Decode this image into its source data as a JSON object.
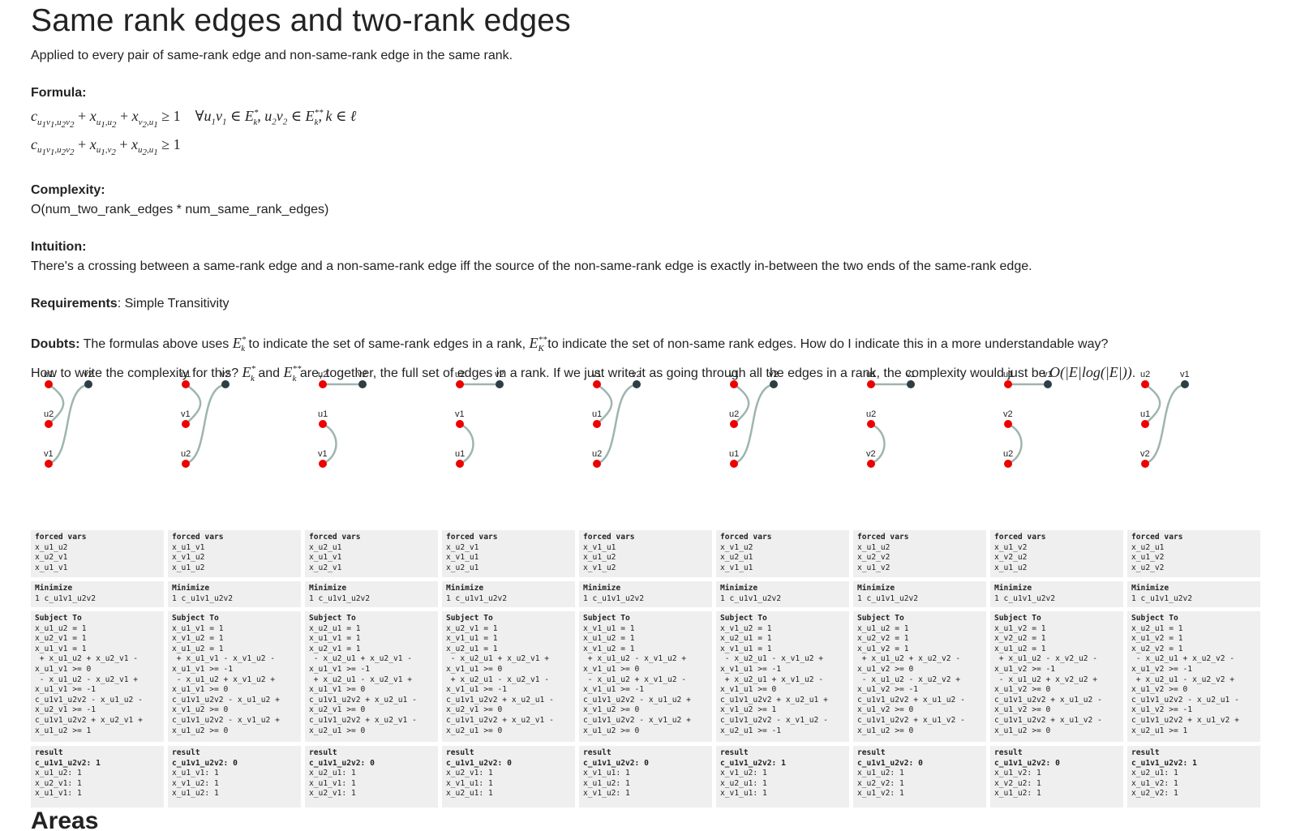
{
  "title": "Same rank edges and two-rank edges",
  "subtitle": "Applied to every pair of same-rank edge and non-same-rank edge in the same rank.",
  "formula_label": "Formula:",
  "complexity_label": "Complexity:",
  "complexity_value": "O(num_two_rank_edges * num_same_rank_edges)",
  "intuition_label": "Intuition:",
  "intuition_text": "There's a crossing between a same-rank edge and a non-same-rank edge iff the source of the non-same-rank edge is exactly in-between the two ends of the same-rank edge.",
  "requirements_label": "Requirements",
  "requirements_value": ": Simple Transitivity",
  "doubts_label": "Doubts:",
  "doubts_line1_a": " The formulas above uses ",
  "doubts_line1_b": " to indicate the set of same-rank edges in a rank, ",
  "doubts_line1_c": " to indicate the set of non-same rank edges. How do I indicate this in a more understandable way?",
  "doubts_line2_a": "How to write the complexity for this? ",
  "doubts_line2_b": " and ",
  "doubts_line2_c": " are, together, the full set of edges in a rank. If we just write it as going through all the edges in a rank, the complexity would just be ",
  "doubts_line2_d": ".",
  "next_heading": "Areas",
  "colors": {
    "red_node": "#ee0000",
    "dark_node": "#2d3e44",
    "edge": "#9fb5af",
    "box_bg": "#efefef"
  },
  "diagrams": [
    {
      "labels": [
        "u1",
        "v2",
        "u2",
        "v1"
      ],
      "type": "cross"
    },
    {
      "labels": [
        "u1",
        "v2",
        "v1",
        "u2"
      ],
      "type": "cross"
    },
    {
      "labels": [
        "u2",
        "v2",
        "u1",
        "v1"
      ],
      "type": "flat"
    },
    {
      "labels": [
        "u2",
        "v2",
        "v1",
        "u1"
      ],
      "type": "flat"
    },
    {
      "labels": [
        "v1",
        "v2",
        "u1",
        "u2"
      ],
      "type": "cross"
    },
    {
      "labels": [
        "v1",
        "v2",
        "u2",
        "u1"
      ],
      "type": "cross"
    },
    {
      "labels": [
        "u1",
        "v1",
        "u2",
        "v2"
      ],
      "type": "flat"
    },
    {
      "labels": [
        "u1",
        "v1",
        "v2",
        "u2"
      ],
      "type": "flat"
    },
    {
      "labels": [
        "u2",
        "v1",
        "u1",
        "v2"
      ],
      "type": "cross"
    }
  ],
  "columns": [
    {
      "forced_header": "forced vars",
      "forced": [
        "x_u1_u2",
        "x_u2_v1",
        "x_u1_v1"
      ],
      "minimize_header": "Minimize",
      "minimize": "1 c_u1v1_u2v2",
      "subject_header": "Subject To",
      "subject": [
        "x_u1_u2 = 1",
        "x_u2_v1 = 1",
        "x_u1_v1 = 1",
        " + x_u1_u2 + x_u2_v1 -",
        "x_u1_v1 >= 0",
        " - x_u1_u2 - x_u2_v1 +",
        "x_u1_v1 >= -1",
        "c_u1v1_u2v2 - x_u1_u2 -",
        "x_u2_v1 >= -1",
        "c_u1v1_u2v2 + x_u2_v1 +",
        "x_u1_u2 >= 1"
      ],
      "result_header": "result",
      "result_first": "c_u1v1_u2v2: 1",
      "result": [
        "x_u1_u2: 1",
        "x_u2_v1: 1",
        "x_u1_v1: 1"
      ]
    },
    {
      "forced_header": "forced vars",
      "forced": [
        "x_u1_v1",
        "x_v1_u2",
        "x_u1_u2"
      ],
      "minimize_header": "Minimize",
      "minimize": "1 c_u1v1_u2v2",
      "subject_header": "Subject To",
      "subject": [
        "x_u1_v1 = 1",
        "x_v1_u2 = 1",
        "x_u1_u2 = 1",
        " + x_u1_v1 - x_v1_u2 -",
        "x_u1_v1 >= -1",
        " - x_u1_u2 + x_v1_u2 +",
        "x_u1_v1 >= 0",
        "c_u1v1_u2v2 - x_u1_u2 +",
        "x_v1_u2 >= 0",
        "c_u1v1_u2v2 - x_v1_u2 +",
        "x_u1_u2 >= 0"
      ],
      "result_header": "result",
      "result_first": "c_u1v1_u2v2: 0",
      "result": [
        "x_u1_v1: 1",
        "x_v1_u2: 1",
        "x_u1_u2: 1"
      ]
    },
    {
      "forced_header": "forced vars",
      "forced": [
        "x_u2_u1",
        "x_u1_v1",
        "x_u2_v1"
      ],
      "minimize_header": "Minimize",
      "minimize": "1 c_u1v1_u2v2",
      "subject_header": "Subject To",
      "subject": [
        "x_u2_u1 = 1",
        "x_u1_v1 = 1",
        "x_u2_v1 = 1",
        " - x_u2_u1 + x_u2_v1 -",
        "x_u1_v1 >= -1",
        " + x_u2_u1 - x_u2_v1 +",
        "x_u1_v1 >= 0",
        "c_u1v1_u2v2 + x_u2_u1 -",
        "x_u2_v1 >= 0",
        "c_u1v1_u2v2 + x_u2_v1 -",
        "x_u2_u1 >= 0"
      ],
      "result_header": "result",
      "result_first": "c_u1v1_u2v2: 0",
      "result": [
        "x_u2_u1: 1",
        "x_u1_v1: 1",
        "x_u2_v1: 1"
      ]
    },
    {
      "forced_header": "forced vars",
      "forced": [
        "x_u2_v1",
        "x_v1_u1",
        "x_u2_u1"
      ],
      "minimize_header": "Minimize",
      "minimize": "1 c_u1v1_u2v2",
      "subject_header": "Subject To",
      "subject": [
        "x_u2_v1 = 1",
        "x_v1_u1 = 1",
        "x_u2_u1 = 1",
        " - x_u2_u1 + x_u2_v1 +",
        "x_v1_u1 >= 0",
        " + x_u2_u1 - x_u2_v1 -",
        "x_v1_u1 >= -1",
        "c_u1v1_u2v2 + x_u2_u1 -",
        "x_u2_v1 >= 0",
        "c_u1v1_u2v2 + x_u2_v1 -",
        "x_u2_u1 >= 0"
      ],
      "result_header": "result",
      "result_first": "c_u1v1_u2v2: 0",
      "result": [
        "x_u2_v1: 1",
        "x_v1_u1: 1",
        "x_u2_u1: 1"
      ]
    },
    {
      "forced_header": "forced vars",
      "forced": [
        "x_v1_u1",
        "x_u1_u2",
        "x_v1_u2"
      ],
      "minimize_header": "Minimize",
      "minimize": "1 c_u1v1_u2v2",
      "subject_header": "Subject To",
      "subject": [
        "x_v1_u1 = 1",
        "x_u1_u2 = 1",
        "x_v1_u2 = 1",
        " + x_u1_u2 - x_v1_u2 +",
        "x_v1_u1 >= 0",
        " - x_u1_u2 + x_v1_u2 -",
        "x_v1_u1 >= -1",
        "c_u1v1_u2v2 - x_u1_u2 +",
        "x_v1_u2 >= 0",
        "c_u1v1_u2v2 - x_v1_u2 +",
        "x_u1_u2 >= 0"
      ],
      "result_header": "result",
      "result_first": "c_u1v1_u2v2: 0",
      "result": [
        "x_v1_u1: 1",
        "x_u1_u2: 1",
        "x_v1_u2: 1"
      ]
    },
    {
      "forced_header": "forced vars",
      "forced": [
        "x_v1_u2",
        "x_u2_u1",
        "x_v1_u1"
      ],
      "minimize_header": "Minimize",
      "minimize": "1 c_u1v1_u2v2",
      "subject_header": "Subject To",
      "subject": [
        "x_v1_u2 = 1",
        "x_u2_u1 = 1",
        "x_v1_u1 = 1",
        " - x_u2_u1 - x_v1_u2 +",
        "x_v1_u1 >= -1",
        " + x_u2_u1 + x_v1_u2 -",
        "x_v1_u1 >= 0",
        "c_u1v1_u2v2 + x_u2_u1 +",
        "x_v1_u2 >= 1",
        "c_u1v1_u2v2 - x_v1_u2 -",
        "x_u2_u1 >= -1"
      ],
      "result_header": "result",
      "result_first": "c_u1v1_u2v2: 1",
      "result": [
        "x_v1_u2: 1",
        "x_u2_u1: 1",
        "x_v1_u1: 1"
      ]
    },
    {
      "forced_header": "forced vars",
      "forced": [
        "x_u1_u2",
        "x_u2_v2",
        "x_u1_v2"
      ],
      "minimize_header": "Minimize",
      "minimize": "1 c_u1v1_u2v2",
      "subject_header": "Subject To",
      "subject": [
        "x_u1_u2 = 1",
        "x_u2_v2 = 1",
        "x_u1_v2 = 1",
        " + x_u1_u2 + x_u2_v2 -",
        "x_u1_v2 >= 0",
        " - x_u1_u2 - x_u2_v2 +",
        "x_u1_v2 >= -1",
        "c_u1v1_u2v2 + x_u1_u2 -",
        "x_u1_v2 >= 0",
        "c_u1v1_u2v2 + x_u1_v2 -",
        "x_u1_u2 >= 0"
      ],
      "result_header": "result",
      "result_first": "c_u1v1_u2v2: 0",
      "result": [
        "x_u1_u2: 1",
        "x_u2_v2: 1",
        "x_u1_v2: 1"
      ]
    },
    {
      "forced_header": "forced vars",
      "forced": [
        "x_u1_v2",
        "x_v2_u2",
        "x_u1_u2"
      ],
      "minimize_header": "Minimize",
      "minimize": "1 c_u1v1_u2v2",
      "subject_header": "Subject To",
      "subject": [
        "x_u1_v2 = 1",
        "x_v2_u2 = 1",
        "x_u1_u2 = 1",
        " + x_u1_u2 - x_v2_u2 -",
        "x_u1_v2 >= -1",
        " - x_u1_u2 + x_v2_u2 +",
        "x_u1_v2 >= 0",
        "c_u1v1_u2v2 + x_u1_u2 -",
        "x_u1_v2 >= 0",
        "c_u1v1_u2v2 + x_u1_v2 -",
        "x_u1_u2 >= 0"
      ],
      "result_header": "result",
      "result_first": "c_u1v1_u2v2: 0",
      "result": [
        "x_u1_v2: 1",
        "x_v2_u2: 1",
        "x_u1_u2: 1"
      ]
    },
    {
      "forced_header": "forced vars",
      "forced": [
        "x_u2_u1",
        "x_u1_v2",
        "x_u2_v2"
      ],
      "minimize_header": "Minimize",
      "minimize": "1 c_u1v1_u2v2",
      "subject_header": "Subject To",
      "subject": [
        "x_u2_u1 = 1",
        "x_u1_v2 = 1",
        "x_u2_v2 = 1",
        " - x_u2_u1 + x_u2_v2 -",
        "x_u1_v2 >= -1",
        " + x_u2_u1 - x_u2_v2 +",
        "x_u1_v2 >= 0",
        "c_u1v1_u2v2 - x_u2_u1 -",
        "x_u1_v2 >= -1",
        "c_u1v1_u2v2 + x_u1_v2 +",
        "x_u2_u1 >= 1"
      ],
      "result_header": "result",
      "result_first": "c_u1v1_u2v2: 1",
      "result": [
        "x_u2_u1: 1",
        "x_u1_v2: 1",
        "x_u2_v2: 1"
      ]
    }
  ]
}
